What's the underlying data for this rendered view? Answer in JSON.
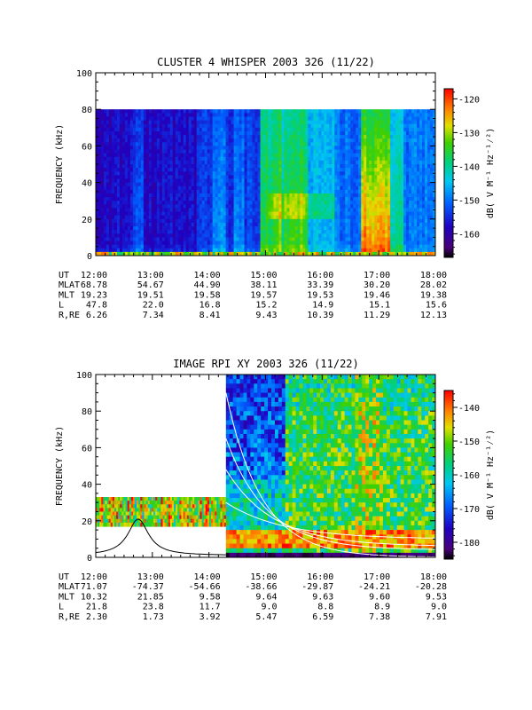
{
  "chart_data": [
    {
      "type": "heatmap",
      "title": "CLUSTER 4 WHISPER 2003 326 (11/22)",
      "ylabel": "FREQUENCY (kHz)",
      "ylim": [
        0,
        100
      ],
      "yticks": [
        "0",
        "20",
        "40",
        "60",
        "80",
        "100"
      ],
      "xlim_hours": [
        12,
        18
      ],
      "data_max_khz": 80,
      "colorbar": {
        "label": "dB( V M⁻¹ Hz⁻¹⁄²)",
        "range": [
          -167,
          -117
        ],
        "ticks": [
          "-120",
          "-130",
          "-140",
          "-150",
          "-160"
        ],
        "tick_values": [
          -120,
          -130,
          -140,
          -150,
          -160
        ]
      },
      "ephemeris": {
        "labels": [
          "UT",
          "MLAT",
          "MLT",
          "L",
          "R,RE"
        ],
        "columns": [
          [
            "12:00",
            "68.78",
            "19.23",
            "47.8",
            "6.26"
          ],
          [
            "13:00",
            "54.67",
            "19.51",
            "22.0",
            "7.34"
          ],
          [
            "14:00",
            "44.90",
            "19.58",
            "16.8",
            "8.41"
          ],
          [
            "15:00",
            "38.11",
            "19.57",
            "15.2",
            "9.43"
          ],
          [
            "16:00",
            "33.39",
            "19.53",
            "14.9",
            "10.39"
          ],
          [
            "17:00",
            "30.20",
            "19.46",
            "15.1",
            "11.29"
          ],
          [
            "18:00",
            "28.02",
            "19.38",
            "15.6",
            "12.13"
          ]
        ]
      }
    },
    {
      "type": "heatmap",
      "title": "IMAGE RPI XY 2003 326 (11/22)",
      "ylabel": "FREQUENCY (kHz)",
      "ylim": [
        0,
        100
      ],
      "yticks": [
        "0",
        "20",
        "40",
        "60",
        "80",
        "100"
      ],
      "xlim_hours": [
        12,
        18
      ],
      "data_start_hours": 14.3,
      "early_band_khz": [
        17,
        33
      ],
      "colorbar": {
        "label": "dB( V M⁻¹ Hz⁻¹⁄²)",
        "range": [
          -185,
          -135
        ],
        "ticks": [
          "-140",
          "-150",
          "-160",
          "-170",
          "-180"
        ],
        "tick_values": [
          -140,
          -150,
          -160,
          -170,
          -180
        ]
      },
      "ephemeris": {
        "labels": [
          "UT",
          "MLAT",
          "MLT",
          "L",
          "R,RE"
        ],
        "columns": [
          [
            "12:00",
            "71.07",
            "10.32",
            "21.8",
            "2.30"
          ],
          [
            "13:00",
            "-74.37",
            "21.85",
            "23.8",
            "1.73"
          ],
          [
            "14:00",
            "-54.66",
            "9.58",
            "11.7",
            "3.92"
          ],
          [
            "15:00",
            "-38.66",
            "9.64",
            "9.0",
            "5.47"
          ],
          [
            "16:00",
            "-29.87",
            "9.63",
            "8.8",
            "6.59"
          ],
          [
            "17:00",
            "-24.21",
            "9.60",
            "8.9",
            "7.38"
          ],
          [
            "18:00",
            "-20.28",
            "9.53",
            "9.0",
            "7.91"
          ]
        ]
      }
    }
  ]
}
